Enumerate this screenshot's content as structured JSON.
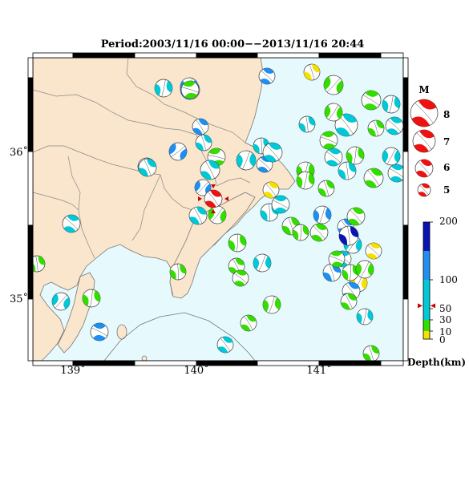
{
  "title": "Period:2003/11/16 00:00−−2013/11/16 20:44",
  "colors": {
    "land": "#fae6cc",
    "sea": "#e6f9fc",
    "boundary": "#777777",
    "coast": "#777777",
    "frame_dark": "#000000",
    "highlight": "#ee1111",
    "marker": "#cc0000"
  },
  "axes": {
    "lon_ticks": [
      "139˚",
      "140˚",
      "141˚"
    ],
    "lat_ticks": [
      "36˚",
      "35˚"
    ]
  },
  "magnitude_legend": {
    "title": "M",
    "labels": [
      "8",
      "7",
      "6",
      "5"
    ]
  },
  "depth_scale": {
    "labels": [
      "200",
      "100",
      "50",
      "30",
      "10",
      "0"
    ],
    "unit_label": "Depth(km)",
    "bands": [
      {
        "from": 0,
        "to": 10,
        "color": "#f5e000"
      },
      {
        "from": 10,
        "to": 30,
        "color": "#33dd00"
      },
      {
        "from": 30,
        "to": 100,
        "color": "#00c8d6"
      },
      {
        "from": 100,
        "to": 150,
        "color": "#1e8ff0"
      },
      {
        "from": 150,
        "to": 200,
        "color": "#0a14b0"
      }
    ],
    "marked_depth": 55
  },
  "main_event": {
    "depth_km": 55,
    "color": "#ee1111"
  },
  "mechanisms": [
    {
      "c": "#1e8ff0",
      "r": 10,
      "a": 20
    },
    {
      "c": "#1e8ff0",
      "r": 12,
      "a": -10
    },
    {
      "c": "#1e8ff0",
      "r": 11,
      "a": 40
    },
    {
      "c": "#f5e000",
      "r": 10,
      "a": 0
    },
    {
      "c": "#33dd00",
      "r": 12,
      "a": 60
    },
    {
      "c": "#1e8ff0",
      "r": 10,
      "a": -30
    },
    {
      "c": "#00c8d6",
      "r": 10,
      "a": 10
    },
    {
      "c": "#00c8d6",
      "r": 14,
      "a": -20
    },
    {
      "c": "#33dd00",
      "r": 11,
      "a": 50
    },
    {
      "c": "#33dd00",
      "r": 12,
      "a": -40
    },
    {
      "c": "#00c8d6",
      "r": 11,
      "a": 30
    },
    {
      "c": "#1e8ff0",
      "r": 10,
      "a": -15
    },
    {
      "c": "#1e8ff0",
      "r": 11,
      "a": 70
    },
    {
      "c": "#00c8d6",
      "r": 10,
      "a": 0
    },
    {
      "c": "#33dd00",
      "r": 11,
      "a": -60
    },
    {
      "c": "#1e8ff0",
      "r": 11,
      "a": 20
    },
    {
      "c": "#00c8d6",
      "r": 12,
      "a": 40
    },
    {
      "c": "#1e8ff0",
      "r": 10,
      "a": -30
    },
    {
      "c": "#00c8d6",
      "r": 10,
      "a": 15
    },
    {
      "c": "#00c8d6",
      "r": 12,
      "a": -25
    },
    {
      "c": "#33dd00",
      "r": 11,
      "a": 35
    },
    {
      "c": "#00c8d6",
      "r": 12,
      "a": -10
    },
    {
      "c": "#1e8ff0",
      "r": 10,
      "a": 60
    },
    {
      "c": "#33dd00",
      "r": 10,
      "a": 0
    },
    {
      "c": "#00c8d6",
      "r": 11,
      "a": -35
    },
    {
      "c": "#33dd00",
      "r": 11,
      "a": 25
    },
    {
      "c": "#33dd00",
      "r": 11,
      "a": -50
    },
    {
      "c": "#00c8d6",
      "r": 11,
      "a": 10
    },
    {
      "c": "#33dd00",
      "r": 12,
      "a": -20
    },
    {
      "c": "#00c8d6",
      "r": 11,
      "a": 45
    },
    {
      "c": "#33dd00",
      "r": 10,
      "a": 0
    },
    {
      "c": "#00c8d6",
      "r": 11,
      "a": -30
    },
    {
      "c": "#33dd00",
      "r": 11,
      "a": 30
    },
    {
      "c": "#00c8d6",
      "r": 11,
      "a": -10
    },
    {
      "c": "#33dd00",
      "r": 11,
      "a": 55
    },
    {
      "c": "#f5e000",
      "r": 10,
      "a": -20
    },
    {
      "c": "#00c8d6",
      "r": 11,
      "a": 15
    },
    {
      "c": "#00c8d6",
      "r": 11,
      "a": -45
    },
    {
      "c": "#33dd00",
      "r": 11,
      "a": 0
    },
    {
      "c": "#33dd00",
      "r": 10,
      "a": 20
    },
    {
      "c": "#33dd00",
      "r": 11,
      "a": -25
    },
    {
      "c": "#1e8ff0",
      "r": 11,
      "a": 35
    },
    {
      "c": "#1e8ff0",
      "r": 10,
      "a": -15
    },
    {
      "c": "#00c8d6",
      "r": 11,
      "a": 50
    },
    {
      "c": "#00c8d6",
      "r": 10,
      "a": -40
    },
    {
      "c": "#0a14b0",
      "r": 12,
      "a": 10
    },
    {
      "c": "#f5e000",
      "r": 10,
      "a": -30
    },
    {
      "c": "#f5e000",
      "r": 11,
      "a": 45
    },
    {
      "c": "#1e8ff0",
      "r": 11,
      "a": 0
    },
    {
      "c": "#1e8ff0",
      "r": 11,
      "a": -20
    },
    {
      "c": "#00c8d6",
      "r": 10,
      "a": 30
    },
    {
      "c": "#33dd00",
      "r": 10,
      "a": -50
    },
    {
      "c": "#33dd00",
      "r": 11,
      "a": 20
    },
    {
      "c": "#33dd00",
      "r": 10,
      "a": -10
    },
    {
      "c": "#00c8d6",
      "r": 11,
      "a": 40
    },
    {
      "c": "#33dd00",
      "r": 10,
      "a": -35
    },
    {
      "c": "#33dd00",
      "r": 10,
      "a": 15
    },
    {
      "c": "#00c8d6",
      "r": 11,
      "a": -5
    },
    {
      "c": "#33dd00",
      "r": 11,
      "a": 25
    },
    {
      "c": "#1e8ff0",
      "r": 11,
      "a": -45
    },
    {
      "c": "#00c8d6",
      "r": 11,
      "a": 60
    },
    {
      "c": "#00c8d6",
      "r": 11,
      "a": -30
    },
    {
      "c": "#33dd00",
      "r": 10,
      "a": 10
    },
    {
      "c": "#33dd00",
      "r": 10,
      "a": -15
    },
    {
      "c": "#33dd00",
      "r": 11,
      "a": 35
    },
    {
      "c": "#00c8d6",
      "r": 10,
      "a": -20
    },
    {
      "c": "#33dd00",
      "r": 10,
      "a": 0
    },
    {
      "c": "#00c8d6",
      "r": 11,
      "a": -40
    },
    {
      "c": "#33dd00",
      "r": 10,
      "a": 20
    },
    {
      "c": "#33dd00",
      "r": 11,
      "a": -25
    },
    {
      "c": "#33dd00",
      "r": 11,
      "a": 45
    },
    {
      "c": "#33dd00",
      "r": 10,
      "a": -10
    },
    {
      "c": "#00c8d6",
      "r": 11,
      "a": 30
    },
    {
      "c": "#33dd00",
      "r": 11,
      "a": -55
    }
  ]
}
